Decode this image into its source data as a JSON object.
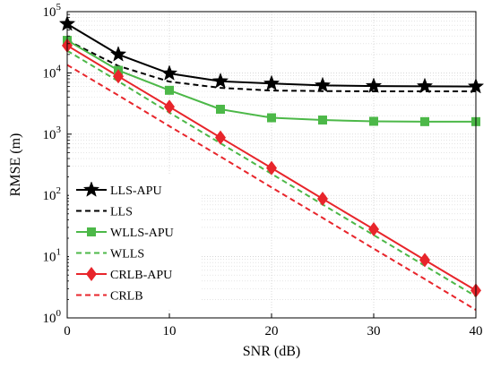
{
  "chart_data": {
    "type": "line",
    "xlabel": "SNR (dB)",
    "ylabel": "RMSE (m)",
    "xlim": [
      0,
      40
    ],
    "ylim_log10": [
      0,
      5
    ],
    "y_scale": "log",
    "grid": true,
    "legend_position": "lower-left",
    "x_ticks": [
      0,
      10,
      20,
      30,
      40
    ],
    "y_ticks": [
      1,
      10,
      100,
      1000,
      10000,
      100000
    ],
    "x": [
      0,
      5,
      10,
      15,
      20,
      25,
      30,
      35,
      40
    ],
    "series": [
      {
        "name": "LLS-APU",
        "color": "#000000",
        "dash": "solid",
        "marker": "star",
        "values": [
          63000,
          20000,
          9800,
          7300,
          6700,
          6250,
          6100,
          6050,
          6000
        ]
      },
      {
        "name": "LLS",
        "color": "#000000",
        "dash": "dashed",
        "marker": "none",
        "values": [
          34000,
          13000,
          7200,
          5700,
          5150,
          5050,
          5000,
          5000,
          5000
        ]
      },
      {
        "name": "WLLS-APU",
        "color": "#4cb848",
        "dash": "solid",
        "marker": "square",
        "values": [
          34000,
          11000,
          5200,
          2550,
          1850,
          1700,
          1620,
          1600,
          1600
        ]
      },
      {
        "name": "WLLS",
        "color": "#4cb848",
        "dash": "dashed",
        "marker": "none",
        "values": [
          23000,
          7300,
          2250,
          710,
          225,
          71,
          22.5,
          7.1,
          2.25
        ]
      },
      {
        "name": "CRLB-APU",
        "color": "#e8252b",
        "dash": "solid",
        "marker": "diamond",
        "values": [
          28000,
          8800,
          2800,
          880,
          280,
          88,
          28,
          8.8,
          2.8
        ]
      },
      {
        "name": "CRLB",
        "color": "#e8252b",
        "dash": "dashed",
        "marker": "none",
        "values": [
          13500,
          4300,
          1350,
          430,
          135,
          43,
          13.5,
          4.3,
          1.35
        ]
      }
    ]
  }
}
